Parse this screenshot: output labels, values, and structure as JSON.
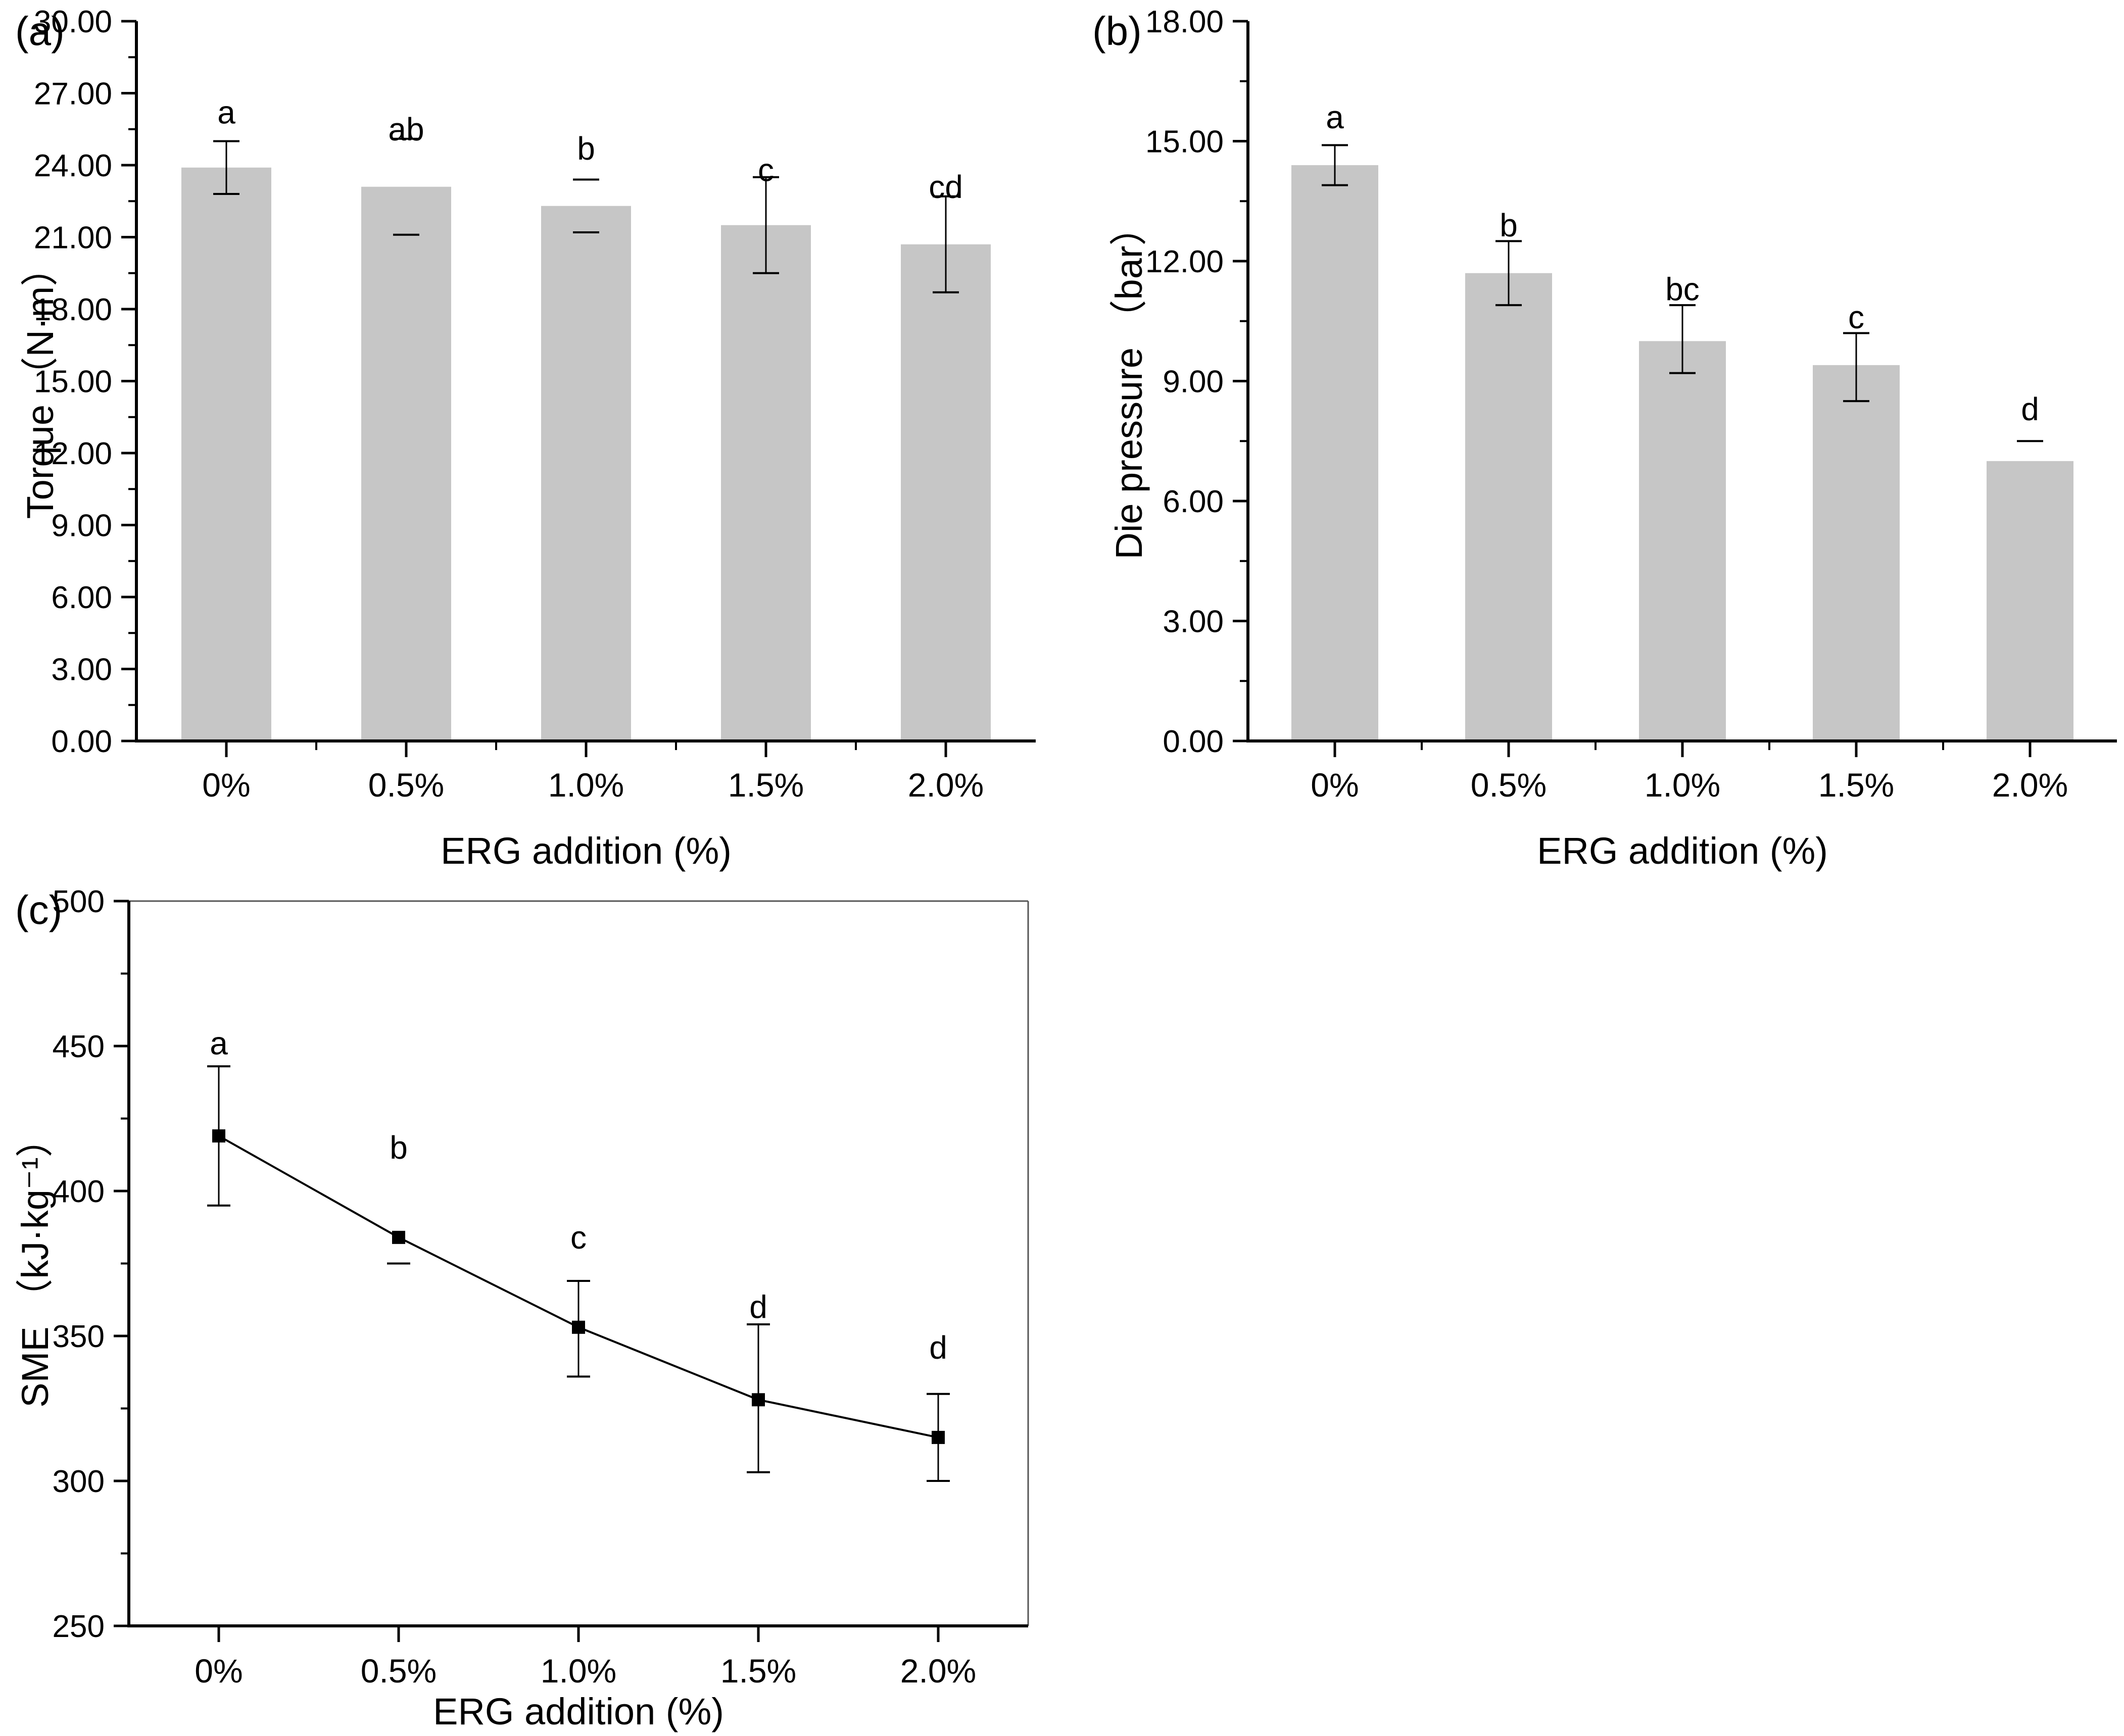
{
  "figure": {
    "background": "#ffffff",
    "panel_labels": [
      "(a)",
      "(b)",
      "(c)"
    ]
  },
  "colors": {
    "bar_fill": "#c6c6c6",
    "axis": "#000000",
    "error_bar": "#000000",
    "line_series": "#000000",
    "marker": "#000000",
    "box_border": "#555555"
  },
  "chart_data": [
    {
      "id": "a",
      "type": "bar",
      "title_label": "(a)",
      "ylabel": "Torque （N·m）",
      "xlabel": "ERG addition (%)",
      "categories": [
        "0%",
        "0.5%",
        "1.0%",
        "1.5%",
        "2.0%"
      ],
      "values": [
        23.9,
        23.1,
        22.3,
        21.5,
        20.7
      ],
      "error_low": [
        22.8,
        21.1,
        21.2,
        19.5,
        18.7
      ],
      "error_high": [
        25.0,
        25.1,
        23.4,
        23.5,
        22.7
      ],
      "error_style": [
        "full",
        "caps",
        "caps",
        "full",
        "full"
      ],
      "sig_letters": [
        "a",
        "ab",
        "b",
        "c",
        "cd"
      ],
      "sig_letter_y": [
        26.2,
        25.5,
        24.7,
        23.8,
        23.1
      ],
      "ylim": [
        0,
        30
      ],
      "ytick_values": [
        0,
        3,
        6,
        9,
        12,
        15,
        18,
        21,
        24,
        27,
        30
      ],
      "ytick_labels": [
        "0.00",
        "3.00",
        "6.00",
        "9.00",
        "12.00",
        "15.00",
        "18.00",
        "21.00",
        "24.00",
        "27.00",
        "30.00"
      ],
      "y_minor_step": 1.5,
      "grid": false,
      "legend": null
    },
    {
      "id": "b",
      "type": "bar",
      "title_label": "(b)",
      "ylabel": "Die pressure （bar）",
      "xlabel": "ERG addition (%)",
      "categories": [
        "0%",
        "0.5%",
        "1.0%",
        "1.5%",
        "2.0%"
      ],
      "values": [
        14.4,
        11.7,
        10.0,
        9.4,
        7.0
      ],
      "error_low": [
        13.9,
        10.9,
        9.2,
        8.5,
        6.5
      ],
      "error_high": [
        14.9,
        12.5,
        10.9,
        10.2,
        7.5
      ],
      "error_style": [
        "full",
        "full",
        "full",
        "full",
        "cap_high"
      ],
      "sig_letters": [
        "a",
        "b",
        "bc",
        "c",
        "d"
      ],
      "sig_letter_y": [
        15.6,
        12.9,
        11.3,
        10.6,
        8.3
      ],
      "ylim": [
        0,
        18
      ],
      "ytick_values": [
        0,
        3,
        6,
        9,
        12,
        15,
        18
      ],
      "ytick_labels": [
        "0.00",
        "3.00",
        "6.00",
        "9.00",
        "12.00",
        "15.00",
        "18.00"
      ],
      "y_minor_step": 1.5,
      "grid": false,
      "legend": null
    },
    {
      "id": "c",
      "type": "line",
      "title_label": "(c)",
      "ylabel": "SME （kJ·kg⁻¹）",
      "xlabel": "ERG addition (%)",
      "categories": [
        "0%",
        "0.5%",
        "1.0%",
        "1.5%",
        "2.0%"
      ],
      "values": [
        419,
        384,
        353,
        328,
        315
      ],
      "error_low": [
        395,
        375,
        336,
        303,
        300
      ],
      "error_high": [
        443,
        393,
        369,
        354,
        330
      ],
      "error_style": [
        "full",
        "cap_low",
        "full",
        "full",
        "full"
      ],
      "sig_letters": [
        "a",
        "b",
        "c",
        "d",
        "d"
      ],
      "sig_letter_y": [
        451,
        415,
        384,
        360,
        346
      ],
      "ylim": [
        250,
        500
      ],
      "ytick_values": [
        250,
        300,
        350,
        400,
        450,
        500
      ],
      "ytick_labels": [
        "250",
        "300",
        "350",
        "400",
        "450",
        "500"
      ],
      "y_minor_step": 25,
      "grid": false,
      "legend": null,
      "boxed": true
    }
  ]
}
